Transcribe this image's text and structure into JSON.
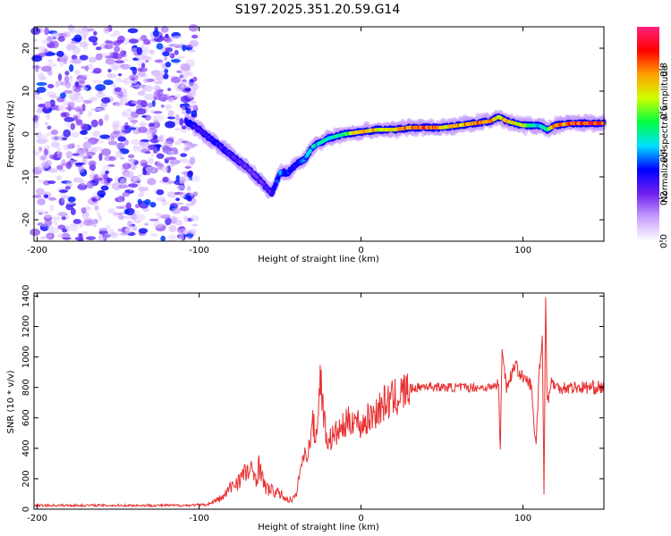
{
  "title": "S197.2025.351.20.59.G14",
  "colors": {
    "snr_line": "#e83030",
    "axis": "#000000",
    "background": "#ffffff"
  },
  "chart_data": [
    {
      "type": "heatmap",
      "name": "spectrogram",
      "xlabel": "Height of straight line (km)",
      "ylabel": "Frequency (Hz)",
      "xlim": [
        -202,
        150
      ],
      "ylim": [
        -25,
        25
      ],
      "xticks": [
        -200,
        -100,
        0,
        100
      ],
      "yticks": [
        -20,
        -10,
        0,
        10,
        20
      ],
      "colorbar": {
        "label": "Normalized spectral amplitude",
        "range": [
          0,
          1
        ],
        "ticks": [
          "0.0",
          "0.2",
          "0.4",
          "0.6",
          "0.8"
        ],
        "tick_values": [
          0.0,
          0.2,
          0.4,
          0.6,
          0.8
        ],
        "colors": [
          "#ffffff",
          "#c8a0ff",
          "#7020f0",
          "#0000ff",
          "#00e0ff",
          "#00ff40",
          "#d0ff00",
          "#ffa000",
          "#ff0000",
          "#ff2080"
        ]
      },
      "noise_region": {
        "x_range": [
          -202,
          -102
        ],
        "freq_range": [
          -25,
          25
        ]
      },
      "ridge": {
        "x": [
          -108,
          -100,
          -90,
          -80,
          -70,
          -62,
          -55,
          -50,
          -45,
          -40,
          -35,
          -30,
          -20,
          -10,
          0,
          10,
          20,
          30,
          40,
          50,
          60,
          70,
          80,
          85,
          90,
          100,
          110,
          115,
          120,
          130,
          140,
          150
        ],
        "freq": [
          3,
          1,
          -2,
          -5,
          -8,
          -11,
          -14,
          -9,
          -9,
          -7,
          -6,
          -3,
          -1,
          0,
          0.5,
          1,
          1,
          1.5,
          1.5,
          1.5,
          2,
          2.5,
          3,
          4,
          3,
          2,
          2,
          1,
          2,
          2.5,
          2.5,
          2.5
        ],
        "amplitude": [
          0.35,
          0.3,
          0.35,
          0.3,
          0.25,
          0.25,
          0.3,
          0.45,
          0.4,
          0.35,
          0.45,
          0.5,
          0.55,
          0.6,
          0.9,
          0.8,
          0.8,
          0.9,
          1.0,
          0.85,
          0.85,
          0.9,
          0.9,
          0.8,
          0.85,
          0.75,
          0.5,
          0.6,
          0.9,
          0.95,
          1.0,
          0.95
        ]
      }
    },
    {
      "type": "line",
      "name": "snr",
      "xlabel": "Height of straight line (km)",
      "ylabel": "SNR (10 * v/v)",
      "xlim": [
        -202,
        150
      ],
      "ylim": [
        0,
        1420
      ],
      "xticks": [
        -200,
        -100,
        0,
        100
      ],
      "yticks": [
        0,
        200,
        400,
        600,
        800,
        1000,
        1200,
        1400
      ],
      "series": [
        {
          "name": "SNR",
          "x": [
            -202,
            -150,
            -110,
            -95,
            -85,
            -80,
            -75,
            -70,
            -65,
            -62,
            -60,
            -55,
            -50,
            -45,
            -40,
            -38,
            -35,
            -32,
            -30,
            -28,
            -25,
            -22,
            -20,
            -15,
            -10,
            -5,
            0,
            5,
            10,
            15,
            20,
            25,
            30,
            40,
            50,
            60,
            70,
            80,
            85,
            86,
            87,
            90,
            95,
            100,
            105,
            108,
            110,
            112,
            113,
            114,
            115,
            118,
            120,
            130,
            140,
            150
          ],
          "y": [
            25,
            25,
            25,
            30,
            80,
            150,
            200,
            250,
            220,
            300,
            150,
            120,
            100,
            60,
            80,
            250,
            350,
            400,
            600,
            450,
            880,
            500,
            450,
            500,
            550,
            600,
            550,
            600,
            650,
            700,
            720,
            760,
            790,
            810,
            800,
            800,
            800,
            800,
            820,
            330,
            1060,
            800,
            950,
            860,
            820,
            400,
            900,
            1140,
            90,
            1420,
            700,
            850,
            800,
            800,
            800,
            800
          ]
        }
      ]
    }
  ]
}
